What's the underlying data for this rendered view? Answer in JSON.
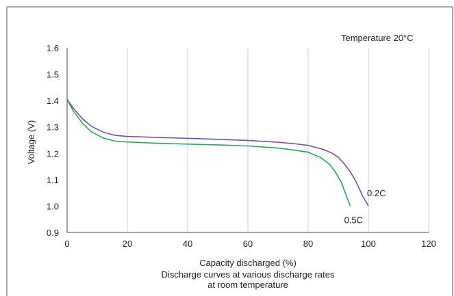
{
  "chart_data": {
    "type": "line",
    "annotation": "Temperature 20°C",
    "xlabel": "Capacity discharged (%)",
    "ylabel": "Voltage (V)",
    "caption_lines": [
      "Discharge curves at various discharge rates",
      "at room temperature"
    ],
    "xlim": [
      0,
      120
    ],
    "ylim": [
      0.9,
      1.6
    ],
    "x_ticks": [
      0,
      20,
      40,
      60,
      80,
      100,
      120
    ],
    "y_ticks": [
      0.9,
      1.0,
      1.1,
      1.2,
      1.3,
      1.4,
      1.5,
      1.6
    ],
    "y_tick_labels": [
      "0.9",
      "1.0",
      "1.1",
      "1.2",
      "1.3",
      "1.4",
      "1.5",
      "1.6"
    ],
    "grid": "vertical",
    "series": [
      {
        "name": "0.2C",
        "color": "#7b4fa0",
        "x": [
          0,
          2,
          5,
          8,
          12,
          16,
          20,
          30,
          40,
          50,
          60,
          70,
          75,
          80,
          85,
          88,
          90,
          92,
          94,
          96,
          98,
          100
        ],
        "y": [
          1.405,
          1.372,
          1.332,
          1.303,
          1.28,
          1.268,
          1.264,
          1.26,
          1.257,
          1.253,
          1.249,
          1.242,
          1.237,
          1.23,
          1.215,
          1.2,
          1.185,
          1.16,
          1.13,
          1.09,
          1.04,
          1.0
        ]
      },
      {
        "name": "0.5C",
        "color": "#1faa55",
        "x": [
          0,
          2,
          5,
          8,
          12,
          16,
          20,
          30,
          40,
          50,
          60,
          70,
          75,
          80,
          84,
          87,
          89,
          91,
          92,
          93,
          94
        ],
        "y": [
          1.405,
          1.362,
          1.315,
          1.282,
          1.258,
          1.246,
          1.243,
          1.238,
          1.235,
          1.232,
          1.228,
          1.22,
          1.213,
          1.204,
          1.185,
          1.16,
          1.13,
          1.09,
          1.06,
          1.03,
          1.0
        ]
      }
    ]
  }
}
